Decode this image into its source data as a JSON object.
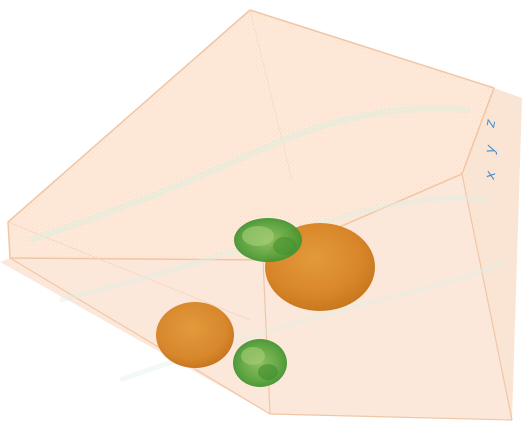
{
  "scene": {
    "axis_labels": [
      "z",
      "y",
      "x"
    ],
    "colors": {
      "box_fill": "#fbe4d2",
      "box_edge": "#f2c9a8",
      "orange_blob": "#dd8a2a",
      "green_blob": "#4f9e3a",
      "axis_text": "#4a8fd0"
    },
    "objects": [
      {
        "kind": "orange-sphere",
        "label": "large"
      },
      {
        "kind": "orange-sphere",
        "label": "medium"
      },
      {
        "kind": "green-cluster",
        "label": "upper"
      },
      {
        "kind": "green-cluster",
        "label": "lower"
      }
    ]
  }
}
